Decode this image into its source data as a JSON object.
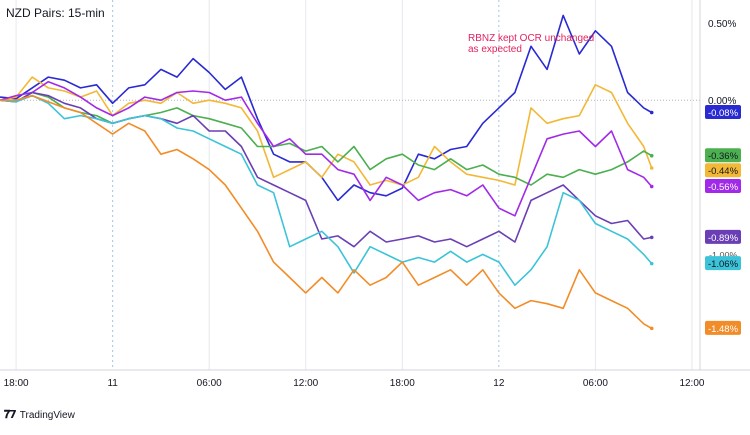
{
  "header": {
    "title": "NZD Pairs: 15-min"
  },
  "annotation": {
    "line1": "RBNZ kept OCR unchanged",
    "line2": "as expected"
  },
  "footer": {
    "brand": "TradingView"
  },
  "colors": {
    "grid": "#e6e8ee",
    "dotted": "#9ec5e8",
    "zero_line": "#b2b5be",
    "axis_text": "#131722"
  },
  "chart_data": {
    "type": "line",
    "title": "NZD Pairs: 15-min",
    "xlabel": "",
    "ylabel": "",
    "x_tick_labels": [
      "18:00",
      "11",
      "06:00",
      "12:00",
      "18:00",
      "12",
      "06:00",
      "12:00"
    ],
    "x_tick_positions": [
      0,
      6,
      12,
      18,
      24,
      30,
      36,
      42
    ],
    "x_range": [
      -1,
      42.5
    ],
    "ylim": [
      -1.75,
      0.65
    ],
    "y_tick_labels": [
      {
        "value": 0.5,
        "label": "0.50%"
      },
      {
        "value": 0.0,
        "label": "0.00%"
      }
    ],
    "grid": true,
    "legend": "none",
    "series": [
      {
        "color": "#2a2ad3",
        "last_label": "-0.08%",
        "points": [
          [
            -1,
            0.02
          ],
          [
            0,
            0.01
          ],
          [
            1,
            0.08
          ],
          [
            2,
            0.15
          ],
          [
            3,
            0.13
          ],
          [
            4,
            0.08
          ],
          [
            5,
            0.1
          ],
          [
            6,
            -0.02
          ],
          [
            7,
            0.08
          ],
          [
            8,
            0.1
          ],
          [
            9,
            0.2
          ],
          [
            10,
            0.15
          ],
          [
            11,
            0.27
          ],
          [
            12,
            0.18
          ],
          [
            13,
            0.07
          ],
          [
            14,
            0.15
          ],
          [
            15,
            -0.12
          ],
          [
            16,
            -0.35
          ],
          [
            17,
            -0.4
          ],
          [
            18,
            -0.4
          ],
          [
            19,
            -0.5
          ],
          [
            20,
            -0.65
          ],
          [
            21,
            -0.55
          ],
          [
            22,
            -0.6
          ],
          [
            23,
            -0.62
          ],
          [
            24,
            -0.57
          ],
          [
            25,
            -0.35
          ],
          [
            26,
            -0.38
          ],
          [
            27,
            -0.32
          ],
          [
            28,
            -0.3
          ],
          [
            29,
            -0.15
          ],
          [
            30,
            -0.05
          ],
          [
            31,
            0.05
          ],
          [
            32,
            0.35
          ],
          [
            33,
            0.2
          ],
          [
            34,
            0.55
          ],
          [
            35,
            0.3
          ],
          [
            36,
            0.45
          ],
          [
            37,
            0.35
          ],
          [
            38,
            0.05
          ],
          [
            39,
            -0.05
          ],
          [
            39.5,
            -0.08
          ]
        ]
      },
      {
        "color": "#f2b836",
        "last_label": "-0.44%",
        "points": [
          [
            -1,
            0.0
          ],
          [
            0,
            0.02
          ],
          [
            1,
            0.15
          ],
          [
            2,
            0.08
          ],
          [
            3,
            0.06
          ],
          [
            4,
            0.02
          ],
          [
            5,
            0.06
          ],
          [
            6,
            -0.1
          ],
          [
            7,
            -0.02
          ],
          [
            8,
            0.0
          ],
          [
            9,
            -0.02
          ],
          [
            10,
            0.05
          ],
          [
            11,
            -0.02
          ],
          [
            12,
            0.0
          ],
          [
            13,
            -0.02
          ],
          [
            14,
            -0.05
          ],
          [
            15,
            -0.2
          ],
          [
            16,
            -0.5
          ],
          [
            17,
            -0.45
          ],
          [
            18,
            -0.4
          ],
          [
            19,
            -0.5
          ],
          [
            20,
            -0.35
          ],
          [
            21,
            -0.4
          ],
          [
            22,
            -0.55
          ],
          [
            23,
            -0.52
          ],
          [
            24,
            -0.55
          ],
          [
            25,
            -0.5
          ],
          [
            26,
            -0.3
          ],
          [
            27,
            -0.4
          ],
          [
            28,
            -0.48
          ],
          [
            29,
            -0.5
          ],
          [
            30,
            -0.52
          ],
          [
            31,
            -0.55
          ],
          [
            32,
            -0.05
          ],
          [
            33,
            -0.15
          ],
          [
            34,
            -0.12
          ],
          [
            35,
            -0.1
          ],
          [
            36,
            0.1
          ],
          [
            37,
            0.05
          ],
          [
            38,
            -0.15
          ],
          [
            39,
            -0.3
          ],
          [
            39.5,
            -0.44
          ]
        ]
      },
      {
        "color": "#4caf50",
        "last_label": "-0.36%",
        "points": [
          [
            -1,
            0.0
          ],
          [
            0,
            -0.01
          ],
          [
            1,
            0.05
          ],
          [
            2,
            0.02
          ],
          [
            3,
            -0.05
          ],
          [
            4,
            -0.08
          ],
          [
            5,
            -0.1
          ],
          [
            6,
            -0.15
          ],
          [
            7,
            -0.12
          ],
          [
            8,
            -0.1
          ],
          [
            9,
            -0.08
          ],
          [
            10,
            -0.05
          ],
          [
            11,
            -0.1
          ],
          [
            12,
            -0.12
          ],
          [
            13,
            -0.15
          ],
          [
            14,
            -0.18
          ],
          [
            15,
            -0.3
          ],
          [
            16,
            -0.3
          ],
          [
            17,
            -0.28
          ],
          [
            18,
            -0.33
          ],
          [
            19,
            -0.3
          ],
          [
            20,
            -0.4
          ],
          [
            21,
            -0.3
          ],
          [
            22,
            -0.45
          ],
          [
            23,
            -0.38
          ],
          [
            24,
            -0.35
          ],
          [
            25,
            -0.42
          ],
          [
            26,
            -0.45
          ],
          [
            27,
            -0.38
          ],
          [
            28,
            -0.45
          ],
          [
            29,
            -0.42
          ],
          [
            30,
            -0.48
          ],
          [
            31,
            -0.5
          ],
          [
            32,
            -0.55
          ],
          [
            33,
            -0.48
          ],
          [
            34,
            -0.5
          ],
          [
            35,
            -0.45
          ],
          [
            36,
            -0.48
          ],
          [
            37,
            -0.45
          ],
          [
            38,
            -0.4
          ],
          [
            39,
            -0.33
          ],
          [
            39.5,
            -0.36
          ]
        ]
      },
      {
        "color": "#a12ae8",
        "last_label": "-0.56%",
        "points": [
          [
            -1,
            0.0
          ],
          [
            0,
            0.03
          ],
          [
            1,
            0.05
          ],
          [
            2,
            0.12
          ],
          [
            3,
            0.08
          ],
          [
            4,
            0.02
          ],
          [
            5,
            -0.05
          ],
          [
            6,
            -0.1
          ],
          [
            7,
            -0.05
          ],
          [
            8,
            0.02
          ],
          [
            9,
            0.0
          ],
          [
            10,
            0.05
          ],
          [
            11,
            0.06
          ],
          [
            12,
            0.05
          ],
          [
            13,
            0.0
          ],
          [
            14,
            0.02
          ],
          [
            15,
            -0.15
          ],
          [
            16,
            -0.3
          ],
          [
            17,
            -0.25
          ],
          [
            18,
            -0.35
          ],
          [
            19,
            -0.35
          ],
          [
            20,
            -0.45
          ],
          [
            21,
            -0.48
          ],
          [
            22,
            -0.65
          ],
          [
            23,
            -0.5
          ],
          [
            24,
            -0.55
          ],
          [
            25,
            -0.65
          ],
          [
            26,
            -0.6
          ],
          [
            27,
            -0.58
          ],
          [
            28,
            -0.62
          ],
          [
            29,
            -0.55
          ],
          [
            30,
            -0.7
          ],
          [
            31,
            -0.75
          ],
          [
            32,
            -0.5
          ],
          [
            33,
            -0.25
          ],
          [
            34,
            -0.22
          ],
          [
            35,
            -0.2
          ],
          [
            36,
            -0.3
          ],
          [
            37,
            -0.2
          ],
          [
            38,
            -0.45
          ],
          [
            39,
            -0.5
          ],
          [
            39.5,
            -0.56
          ]
        ]
      },
      {
        "color": "#6a3fb5",
        "last_label": "-0.89%",
        "points": [
          [
            -1,
            0.0
          ],
          [
            0,
            -0.01
          ],
          [
            1,
            0.05
          ],
          [
            2,
            0.03
          ],
          [
            3,
            -0.02
          ],
          [
            4,
            -0.05
          ],
          [
            5,
            -0.12
          ],
          [
            6,
            -0.15
          ],
          [
            7,
            -0.12
          ],
          [
            8,
            -0.1
          ],
          [
            9,
            -0.12
          ],
          [
            10,
            -0.15
          ],
          [
            11,
            -0.1
          ],
          [
            12,
            -0.2
          ],
          [
            13,
            -0.2
          ],
          [
            14,
            -0.3
          ],
          [
            15,
            -0.5
          ],
          [
            16,
            -0.55
          ],
          [
            17,
            -0.6
          ],
          [
            18,
            -0.65
          ],
          [
            19,
            -0.9
          ],
          [
            20,
            -0.88
          ],
          [
            21,
            -0.95
          ],
          [
            22,
            -0.85
          ],
          [
            23,
            -0.92
          ],
          [
            24,
            -0.9
          ],
          [
            25,
            -0.88
          ],
          [
            26,
            -0.92
          ],
          [
            27,
            -0.9
          ],
          [
            28,
            -0.95
          ],
          [
            29,
            -0.9
          ],
          [
            30,
            -0.85
          ],
          [
            31,
            -0.92
          ],
          [
            32,
            -0.65
          ],
          [
            33,
            -0.6
          ],
          [
            34,
            -0.55
          ],
          [
            35,
            -0.65
          ],
          [
            36,
            -0.75
          ],
          [
            37,
            -0.8
          ],
          [
            38,
            -0.78
          ],
          [
            39,
            -0.9
          ],
          [
            39.5,
            -0.89
          ]
        ]
      },
      {
        "color": "#3cc3d8",
        "last_label": "-1.06%",
        "points": [
          [
            -1,
            0.0
          ],
          [
            0,
            -0.01
          ],
          [
            1,
            0.03
          ],
          [
            2,
            -0.02
          ],
          [
            3,
            -0.12
          ],
          [
            4,
            -0.1
          ],
          [
            5,
            -0.12
          ],
          [
            6,
            -0.15
          ],
          [
            7,
            -0.12
          ],
          [
            8,
            -0.1
          ],
          [
            9,
            -0.12
          ],
          [
            10,
            -0.18
          ],
          [
            11,
            -0.2
          ],
          [
            12,
            -0.25
          ],
          [
            13,
            -0.3
          ],
          [
            14,
            -0.35
          ],
          [
            15,
            -0.55
          ],
          [
            16,
            -0.6
          ],
          [
            17,
            -0.95
          ],
          [
            18,
            -0.9
          ],
          [
            19,
            -0.85
          ],
          [
            20,
            -0.95
          ],
          [
            21,
            -1.12
          ],
          [
            22,
            -0.95
          ],
          [
            23,
            -1.0
          ],
          [
            24,
            -1.05
          ],
          [
            25,
            -1.02
          ],
          [
            26,
            -1.05
          ],
          [
            27,
            -0.98
          ],
          [
            28,
            -1.05
          ],
          [
            29,
            -1.0
          ],
          [
            30,
            -1.05
          ],
          [
            31,
            -1.2
          ],
          [
            32,
            -1.1
          ],
          [
            33,
            -0.95
          ],
          [
            34,
            -0.6
          ],
          [
            35,
            -0.65
          ],
          [
            36,
            -0.8
          ],
          [
            37,
            -0.85
          ],
          [
            38,
            -0.9
          ],
          [
            39,
            -1.0
          ],
          [
            39.5,
            -1.06
          ]
        ]
      },
      {
        "color": "#f28c28",
        "last_label": "-1.48%",
        "points": [
          [
            -1,
            0.0
          ],
          [
            0,
            0.0
          ],
          [
            1,
            0.03
          ],
          [
            2,
            -0.01
          ],
          [
            3,
            -0.05
          ],
          [
            4,
            -0.08
          ],
          [
            5,
            -0.15
          ],
          [
            6,
            -0.22
          ],
          [
            7,
            -0.15
          ],
          [
            8,
            -0.2
          ],
          [
            9,
            -0.35
          ],
          [
            10,
            -0.32
          ],
          [
            11,
            -0.38
          ],
          [
            12,
            -0.45
          ],
          [
            13,
            -0.55
          ],
          [
            14,
            -0.7
          ],
          [
            15,
            -0.85
          ],
          [
            16,
            -1.05
          ],
          [
            17,
            -1.15
          ],
          [
            18,
            -1.25
          ],
          [
            19,
            -1.15
          ],
          [
            20,
            -1.25
          ],
          [
            21,
            -1.1
          ],
          [
            22,
            -1.2
          ],
          [
            23,
            -1.15
          ],
          [
            24,
            -1.05
          ],
          [
            25,
            -1.2
          ],
          [
            26,
            -1.15
          ],
          [
            27,
            -1.1
          ],
          [
            28,
            -1.2
          ],
          [
            29,
            -1.1
          ],
          [
            30,
            -1.25
          ],
          [
            31,
            -1.35
          ],
          [
            32,
            -1.3
          ],
          [
            33,
            -1.32
          ],
          [
            34,
            -1.35
          ],
          [
            35,
            -1.1
          ],
          [
            36,
            -1.25
          ],
          [
            37,
            -1.3
          ],
          [
            38,
            -1.35
          ],
          [
            39,
            -1.45
          ],
          [
            39.5,
            -1.48
          ]
        ]
      }
    ],
    "extra_axis_labels": [
      "-1.00%"
    ]
  }
}
